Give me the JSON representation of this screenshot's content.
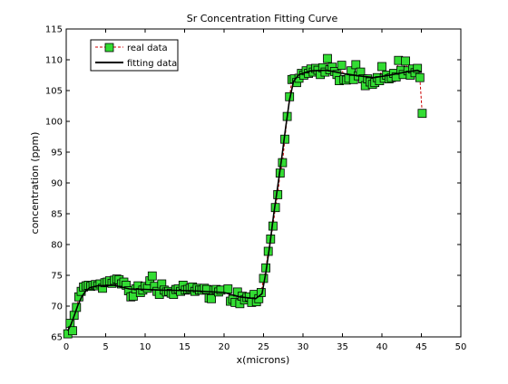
{
  "chart_data": {
    "type": "scatter",
    "title": "Sr Concentration Fitting Curve",
    "xlabel": "x(microns)",
    "ylabel": "concentration (ppm)",
    "xlim": [
      0,
      50
    ],
    "ylim": [
      65,
      115
    ],
    "xticks": [
      0,
      5,
      10,
      15,
      20,
      25,
      30,
      35,
      40,
      45,
      50
    ],
    "yticks": [
      65,
      70,
      75,
      80,
      85,
      90,
      95,
      100,
      105,
      110,
      115
    ],
    "grid": false,
    "legend_position": "top-left",
    "series": [
      {
        "name": "real data",
        "style": "markers",
        "marker_color": "#33dd33",
        "line_color": "#cc0000",
        "points": [
          [
            0.2,
            65.5
          ],
          [
            0.5,
            67.2
          ],
          [
            0.8,
            66.0
          ],
          [
            1.0,
            68.5
          ],
          [
            1.3,
            69.8
          ],
          [
            1.6,
            71.5
          ],
          [
            1.9,
            72.4
          ],
          [
            2.2,
            73.1
          ],
          [
            2.5,
            73.3
          ],
          [
            2.8,
            73.4
          ],
          [
            3.1,
            73.2
          ],
          [
            3.4,
            73.4
          ],
          [
            3.7,
            73.5
          ],
          [
            4.0,
            73.3
          ],
          [
            4.3,
            73.6
          ],
          [
            4.6,
            72.9
          ],
          [
            4.9,
            73.8
          ],
          [
            5.2,
            73.9
          ],
          [
            5.5,
            74.1
          ],
          [
            5.8,
            73.7
          ],
          [
            6.1,
            74.2
          ],
          [
            6.4,
            74.4
          ],
          [
            6.7,
            74.3
          ],
          [
            7.0,
            73.6
          ],
          [
            7.3,
            73.9
          ],
          [
            7.6,
            73.4
          ],
          [
            7.9,
            72.5
          ],
          [
            8.2,
            71.5
          ],
          [
            8.5,
            71.6
          ],
          [
            8.8,
            72.8
          ],
          [
            9.1,
            73.3
          ],
          [
            9.4,
            72.2
          ],
          [
            9.7,
            72.6
          ],
          [
            10.0,
            73.2
          ],
          [
            10.3,
            72.9
          ],
          [
            10.6,
            74.1
          ],
          [
            10.9,
            74.9
          ],
          [
            11.2,
            73.2
          ],
          [
            11.5,
            72.4
          ],
          [
            11.8,
            71.9
          ],
          [
            12.1,
            73.6
          ],
          [
            12.4,
            72.6
          ],
          [
            12.7,
            72.3
          ],
          [
            13.0,
            72.4
          ],
          [
            13.3,
            72.1
          ],
          [
            13.6,
            71.9
          ],
          [
            13.9,
            72.7
          ],
          [
            14.2,
            72.8
          ],
          [
            14.5,
            72.4
          ],
          [
            14.8,
            73.4
          ],
          [
            15.1,
            72.6
          ],
          [
            15.4,
            72.7
          ],
          [
            15.7,
            72.9
          ],
          [
            16.0,
            73.1
          ],
          [
            16.3,
            72.4
          ],
          [
            16.6,
            72.9
          ],
          [
            16.9,
            72.6
          ],
          [
            17.2,
            72.6
          ],
          [
            17.5,
            72.9
          ],
          [
            17.8,
            72.7
          ],
          [
            18.1,
            71.3
          ],
          [
            18.4,
            71.2
          ],
          [
            18.7,
            72.6
          ],
          [
            19.0,
            72.7
          ],
          [
            19.3,
            72.3
          ],
          [
            19.6,
            72.6
          ],
          [
            20.5,
            72.8
          ],
          [
            20.8,
            70.8
          ],
          [
            21.1,
            71.1
          ],
          [
            21.4,
            70.6
          ],
          [
            21.7,
            72.3
          ],
          [
            22.0,
            70.4
          ],
          [
            22.3,
            71.6
          ],
          [
            22.6,
            71.0
          ],
          [
            22.9,
            71.4
          ],
          [
            23.2,
            71.5
          ],
          [
            23.5,
            70.6
          ],
          [
            23.8,
            71.9
          ],
          [
            24.1,
            70.7
          ],
          [
            24.4,
            71.2
          ],
          [
            24.7,
            72.2
          ],
          [
            25.0,
            74.5
          ],
          [
            25.3,
            76.2
          ],
          [
            25.6,
            78.9
          ],
          [
            25.9,
            80.9
          ],
          [
            26.2,
            83.0
          ],
          [
            26.5,
            86.0
          ],
          [
            26.8,
            88.1
          ],
          [
            27.1,
            91.6
          ],
          [
            27.4,
            93.3
          ],
          [
            27.7,
            97.1
          ],
          [
            28.0,
            100.8
          ],
          [
            28.3,
            104.0
          ],
          [
            28.6,
            106.8
          ],
          [
            28.9,
            106.9
          ],
          [
            29.2,
            106.3
          ],
          [
            29.5,
            107.0
          ],
          [
            29.8,
            107.8
          ],
          [
            30.1,
            107.5
          ],
          [
            30.4,
            108.2
          ],
          [
            30.7,
            107.8
          ],
          [
            31.0,
            108.5
          ],
          [
            31.3,
            108.0
          ],
          [
            31.6,
            108.6
          ],
          [
            31.9,
            108.3
          ],
          [
            32.2,
            107.6
          ],
          [
            32.5,
            108.7
          ],
          [
            32.8,
            108.0
          ],
          [
            33.1,
            110.2
          ],
          [
            33.4,
            108.4
          ],
          [
            33.7,
            108.8
          ],
          [
            34.0,
            108.1
          ],
          [
            34.3,
            107.6
          ],
          [
            34.6,
            106.6
          ],
          [
            34.9,
            109.1
          ],
          [
            35.2,
            106.8
          ],
          [
            35.5,
            106.7
          ],
          [
            35.8,
            107.0
          ],
          [
            36.1,
            108.2
          ],
          [
            36.4,
            106.8
          ],
          [
            36.7,
            109.2
          ],
          [
            37.0,
            107.4
          ],
          [
            37.3,
            108.0
          ],
          [
            37.6,
            106.9
          ],
          [
            37.9,
            105.8
          ],
          [
            38.2,
            106.9
          ],
          [
            38.5,
            106.4
          ],
          [
            38.8,
            106.0
          ],
          [
            39.1,
            106.3
          ],
          [
            39.4,
            107.1
          ],
          [
            39.7,
            106.6
          ],
          [
            40.0,
            108.9
          ],
          [
            40.3,
            107.0
          ],
          [
            40.6,
            107.5
          ],
          [
            40.9,
            106.9
          ],
          [
            41.2,
            107.1
          ],
          [
            41.5,
            107.8
          ],
          [
            41.8,
            107.2
          ],
          [
            42.1,
            109.9
          ],
          [
            42.4,
            108.3
          ],
          [
            42.7,
            107.6
          ],
          [
            43.0,
            109.8
          ],
          [
            43.3,
            108.2
          ],
          [
            43.6,
            107.5
          ],
          [
            43.9,
            108.5
          ],
          [
            44.2,
            107.9
          ],
          [
            44.5,
            108.6
          ],
          [
            44.8,
            107.1
          ],
          [
            45.1,
            101.3
          ]
        ]
      },
      {
        "name": "fitting data",
        "style": "line",
        "line_color": "#000000",
        "points": [
          [
            0.2,
            66.0
          ],
          [
            0.6,
            67.0
          ],
          [
            1.0,
            68.4
          ],
          [
            1.5,
            70.2
          ],
          [
            2.0,
            71.6
          ],
          [
            2.5,
            72.5
          ],
          [
            3.0,
            73.0
          ],
          [
            4.0,
            73.3
          ],
          [
            6.0,
            73.4
          ],
          [
            8.0,
            72.8
          ],
          [
            10.0,
            72.7
          ],
          [
            12.0,
            72.6
          ],
          [
            16.0,
            72.5
          ],
          [
            20.0,
            72.2
          ],
          [
            22.0,
            71.5
          ],
          [
            24.0,
            71.2
          ],
          [
            24.8,
            72.0
          ],
          [
            25.3,
            75.5
          ],
          [
            25.8,
            80.0
          ],
          [
            26.3,
            85.0
          ],
          [
            26.8,
            89.5
          ],
          [
            27.3,
            94.0
          ],
          [
            27.8,
            99.0
          ],
          [
            28.3,
            103.5
          ],
          [
            28.8,
            106.5
          ],
          [
            29.5,
            107.6
          ],
          [
            31.0,
            108.2
          ],
          [
            33.0,
            108.3
          ],
          [
            35.0,
            107.8
          ],
          [
            37.0,
            107.4
          ],
          [
            39.0,
            107.1
          ],
          [
            41.0,
            107.5
          ],
          [
            43.0,
            108.0
          ],
          [
            44.5,
            108.3
          ],
          [
            45.0,
            108.0
          ]
        ]
      }
    ]
  }
}
